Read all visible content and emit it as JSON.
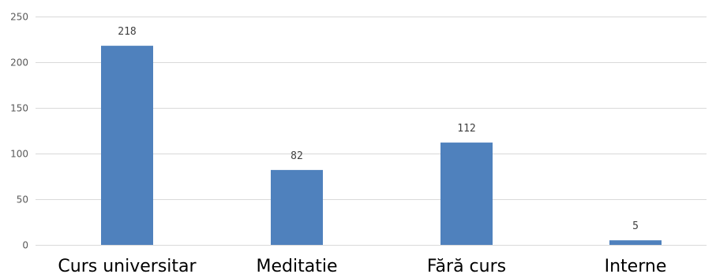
{
  "chart_data": {
    "type": "bar",
    "categories": [
      "Curs universitar",
      "Meditatie",
      "Fără curs",
      "Interne"
    ],
    "values": [
      218,
      82,
      112,
      5
    ],
    "data_labels": [
      "218",
      "82",
      "112",
      "5"
    ],
    "ylim": [
      0,
      250
    ],
    "yticks": [
      0,
      50,
      100,
      150,
      200,
      250
    ],
    "ytick_labels": [
      "0",
      "50",
      "100",
      "150",
      "200",
      "250"
    ],
    "grid": true,
    "legend": "none",
    "bar_color": "#4f81bd"
  }
}
